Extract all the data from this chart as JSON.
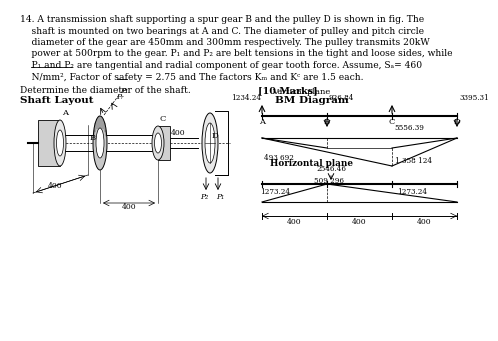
{
  "bg": "#ffffff",
  "text_color": "#000000",
  "text_block": [
    [
      "14. A transmission shaft supporting a spur gear B and the pulley D is shown in fig. The",
      0
    ],
    [
      "    shaft is mounted on two bearings at A and C. The diameter of pulley and pitch circle",
      1
    ],
    [
      "    diameter of the gear are 450mm and 300mm respectively. The pulley transmits 20kW",
      2
    ],
    [
      "    power at 500rpm to the gear. P₁ and P₂ are belt tensions in the tight and loose sides, while",
      3
    ],
    [
      "    P₁ and P₂ are tangential and radial component of gear tooth force. Assume, Sₐ= 460",
      4
    ],
    [
      "    N/mm², Factor of safety = 2.75 and The factors Kₘ and Kᶜ are 1.5 each.",
      5
    ]
  ],
  "determine": "Determine the diameter of the shaft.",
  "marks": "[10 Marks]",
  "shaft_label": "Shaft Layout",
  "bm_label": "BM Diagram",
  "vp_label": "Vertical plane",
  "hp_label": "Horizontal plane",
  "vp_vals": {
    "A_rxn": "1234.24",
    "B_load": "926.84",
    "D_load": "3395.31",
    "C_rxn": "5556.39"
  },
  "bm_v_vals": {
    "left": "493 692",
    "right": "1 358 124"
  },
  "hp_vals": {
    "load": "2546.46",
    "rxn_left": "1273.24",
    "rxn_right": "1273.24",
    "bm_mid": "509 296"
  },
  "dim_vals": [
    "400",
    "400",
    "400"
  ],
  "shaft_dims": [
    "400",
    "400"
  ]
}
